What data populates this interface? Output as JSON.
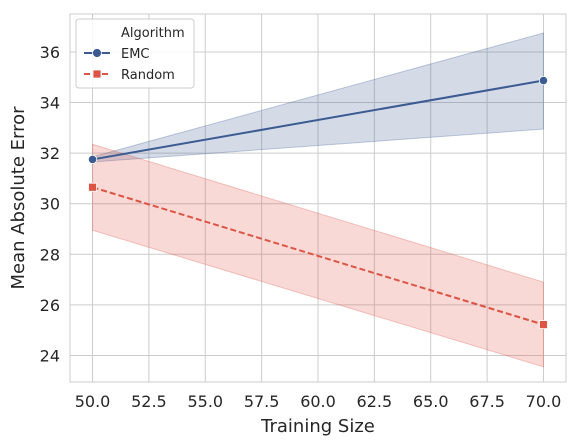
{
  "chart_data": {
    "type": "line",
    "xlabel": "Training Size",
    "ylabel": "Mean Absolute Error",
    "xlim": [
      49.0,
      71.0
    ],
    "ylim": [
      22.95,
      37.5
    ],
    "xticks": [
      "50.0",
      "52.5",
      "55.0",
      "57.5",
      "60.0",
      "62.5",
      "65.0",
      "67.5",
      "70.0"
    ],
    "yticks": [
      "24",
      "26",
      "28",
      "30",
      "32",
      "34",
      "36"
    ],
    "grid": true,
    "legend": {
      "title": "Algorithm",
      "placement": "top-left",
      "entries": [
        "EMC",
        "Random"
      ]
    },
    "series": [
      {
        "name": "EMC",
        "color": "#3b5b92",
        "marker": "circle",
        "linestyle": "solid",
        "x": [
          50.0,
          70.0
        ],
        "y": [
          31.75,
          34.87
        ],
        "ci_low": [
          31.65,
          32.95
        ],
        "ci_high": [
          31.85,
          36.75
        ]
      },
      {
        "name": "Random",
        "color": "#dd5444",
        "marker": "square",
        "linestyle": "dashed",
        "x": [
          50.0,
          70.0
        ],
        "y": [
          30.65,
          25.22
        ],
        "ci_low": [
          28.95,
          23.55
        ],
        "ci_high": [
          32.35,
          26.9
        ]
      }
    ]
  }
}
